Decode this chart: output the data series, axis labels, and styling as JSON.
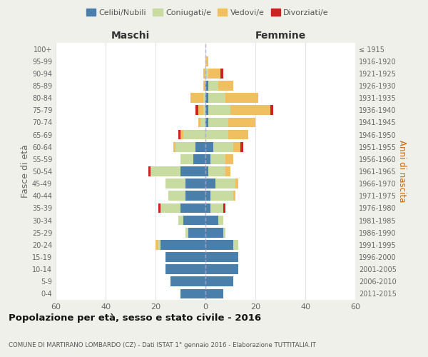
{
  "age_groups": [
    "0-4",
    "5-9",
    "10-14",
    "15-19",
    "20-24",
    "25-29",
    "30-34",
    "35-39",
    "40-44",
    "45-49",
    "50-54",
    "55-59",
    "60-64",
    "65-69",
    "70-74",
    "75-79",
    "80-84",
    "85-89",
    "90-94",
    "95-99",
    "100+"
  ],
  "birth_years": [
    "2011-2015",
    "2006-2010",
    "2001-2005",
    "1996-2000",
    "1991-1995",
    "1986-1990",
    "1981-1985",
    "1976-1980",
    "1971-1975",
    "1966-1970",
    "1961-1965",
    "1956-1960",
    "1951-1955",
    "1946-1950",
    "1941-1945",
    "1936-1940",
    "1931-1935",
    "1926-1930",
    "1921-1925",
    "1916-1920",
    "≤ 1915"
  ],
  "maschi": {
    "celibi": [
      10,
      14,
      16,
      16,
      18,
      7,
      9,
      10,
      8,
      8,
      10,
      5,
      4,
      0,
      0,
      0,
      0,
      0,
      0,
      0,
      0
    ],
    "coniugati": [
      0,
      0,
      0,
      0,
      1,
      1,
      2,
      8,
      7,
      8,
      12,
      5,
      8,
      9,
      2,
      1,
      1,
      0,
      0,
      0,
      0
    ],
    "vedovi": [
      0,
      0,
      0,
      0,
      1,
      0,
      0,
      0,
      0,
      0,
      0,
      0,
      1,
      1,
      1,
      2,
      5,
      1,
      1,
      0,
      0
    ],
    "divorziati": [
      0,
      0,
      0,
      0,
      0,
      0,
      0,
      1,
      0,
      0,
      1,
      0,
      0,
      1,
      0,
      1,
      0,
      0,
      0,
      0,
      0
    ]
  },
  "femmine": {
    "nubili": [
      7,
      11,
      13,
      13,
      11,
      7,
      5,
      2,
      2,
      4,
      1,
      2,
      3,
      0,
      1,
      1,
      1,
      1,
      0,
      0,
      0
    ],
    "coniugate": [
      0,
      0,
      0,
      0,
      2,
      1,
      2,
      5,
      9,
      8,
      7,
      6,
      8,
      9,
      8,
      9,
      7,
      4,
      1,
      0,
      0
    ],
    "vedove": [
      0,
      0,
      0,
      0,
      0,
      0,
      0,
      0,
      1,
      1,
      2,
      3,
      3,
      8,
      11,
      16,
      13,
      6,
      5,
      1,
      0
    ],
    "divorziate": [
      0,
      0,
      0,
      0,
      0,
      0,
      0,
      1,
      0,
      0,
      0,
      0,
      1,
      0,
      0,
      1,
      0,
      0,
      1,
      0,
      0
    ]
  },
  "colors": {
    "celibi_nubili": "#4a7fab",
    "coniugati": "#c8dba0",
    "vedovi": "#f0c060",
    "divorziati": "#cc2222"
  },
  "xlim": 60,
  "title": "Popolazione per età, sesso e stato civile - 2016",
  "subtitle": "COMUNE DI MARTIRANO LOMBARDO (CZ) - Dati ISTAT 1° gennaio 2016 - Elaborazione TUTTITALIA.IT",
  "ylabel_left": "Fasce di età",
  "ylabel_right": "Anni di nascita",
  "xlabel_maschi": "Maschi",
  "xlabel_femmine": "Femmine",
  "bg_color": "#f0f0eb",
  "plot_bg_color": "#ffffff",
  "grid_color": "#d8d8d8"
}
